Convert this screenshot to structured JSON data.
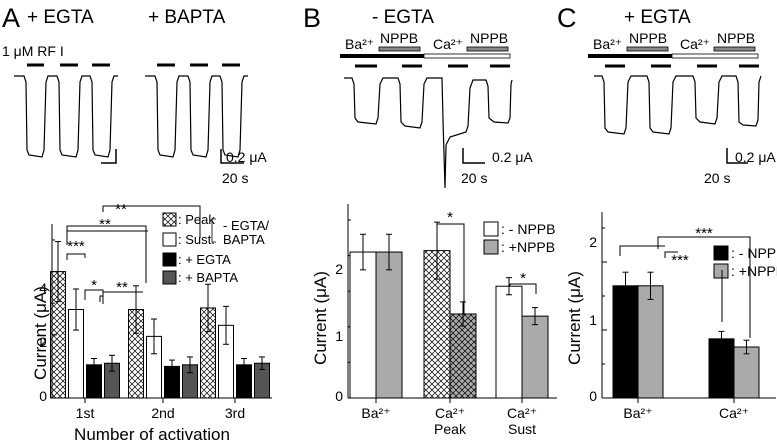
{
  "figure": {
    "panels": [
      {
        "letter": "A",
        "condition": "+ EGTA",
        "condition2": "+ BAPTA"
      },
      {
        "letter": "B",
        "condition": "- EGTA"
      },
      {
        "letter": "C",
        "condition": "+ EGTA"
      }
    ],
    "trace_labels": {
      "rfi": "1 μM RF I",
      "scale_current": "0.2 μA",
      "scale_time": "20 s",
      "ba": "Ba²⁺",
      "ca": "Ca²⁺",
      "nppb": "NPPB"
    }
  },
  "chart_data": [
    {
      "panel": "A",
      "type": "bar",
      "ylabel": "Current (μA)",
      "xlabel": "Number of activation",
      "ylim": [
        0,
        5
      ],
      "yticks": [
        "0",
        "2",
        "4"
      ],
      "categories": [
        "1st",
        "2nd",
        "3rd"
      ],
      "series": [
        {
          "name": "Peak",
          "fill": "crosshatch",
          "values": [
            4.0,
            2.8,
            2.85
          ],
          "errors": [
            0.95,
            0.75,
            0.75
          ]
        },
        {
          "name": "Sust.",
          "fill": "#ffffff",
          "values": [
            2.8,
            1.95,
            2.3
          ],
          "errors": [
            0.65,
            0.55,
            0.6
          ]
        },
        {
          "name": "+ EGTA",
          "fill": "#000000",
          "values": [
            1.05,
            1.0,
            1.05
          ],
          "errors": [
            0.2,
            0.2,
            0.2
          ]
        },
        {
          "name": "+ BAPTA",
          "fill": "#555555",
          "values": [
            1.1,
            1.05,
            1.1
          ],
          "errors": [
            0.25,
            0.25,
            0.2
          ]
        }
      ],
      "legend": {
        "entries": [
          ": Peak",
          ": Sust.",
          ": + EGTA",
          ": + BAPTA"
        ],
        "group_label": "- EGTA/",
        "group_label2": "BAPTA",
        "placement": "top-right"
      },
      "significance": [
        {
          "text": "***"
        },
        {
          "text": "*"
        },
        {
          "text": "**"
        },
        {
          "text": "**"
        },
        {
          "text": "**"
        }
      ]
    },
    {
      "panel": "B",
      "type": "bar",
      "ylabel": "Current (μA)",
      "ylim": [
        0,
        2.5
      ],
      "yticks": [
        "0",
        "1",
        "2"
      ],
      "categories": [
        "Ba²⁺",
        "Ca²⁺",
        "Ca²⁺"
      ],
      "category_sublabels": [
        "",
        "Peak",
        "Sust"
      ],
      "series": [
        {
          "name": "- NPPB",
          "fill": "#ffffff",
          "values": [
            2.05,
            2.07,
            1.57
          ],
          "errors": [
            0.25,
            0.4,
            0.12
          ]
        },
        {
          "name": "+NPPB",
          "fill": "#aaaaaa",
          "values": [
            2.05,
            1.18,
            1.15
          ],
          "errors": [
            0.25,
            0.17,
            0.12
          ]
        }
      ],
      "legend": {
        "entries": [
          ": - NPPB",
          ": +NPPB"
        ],
        "placement": "top-right"
      },
      "significance": [
        {
          "text": "*"
        },
        {
          "text": "*"
        }
      ]
    },
    {
      "panel": "C",
      "type": "bar",
      "ylabel": "Current (μA)",
      "ylim": [
        0,
        2.5
      ],
      "yticks": [
        "0",
        "1",
        "2"
      ],
      "categories": [
        "Ba²⁺",
        "Ca²⁺"
      ],
      "series": [
        {
          "name": "- NPPB",
          "fill": "#000000",
          "values": [
            1.65,
            0.87
          ],
          "errors": [
            0.2,
            0.11
          ]
        },
        {
          "name": "+NPPB",
          "fill": "#aaaaaa",
          "values": [
            1.65,
            0.75
          ],
          "errors": [
            0.2,
            0.1
          ]
        }
      ],
      "legend": {
        "entries": [
          ": - NPPB",
          ": +NPPB"
        ],
        "placement": "top-right"
      },
      "significance": [
        {
          "text": "***"
        },
        {
          "text": "***"
        }
      ]
    }
  ]
}
